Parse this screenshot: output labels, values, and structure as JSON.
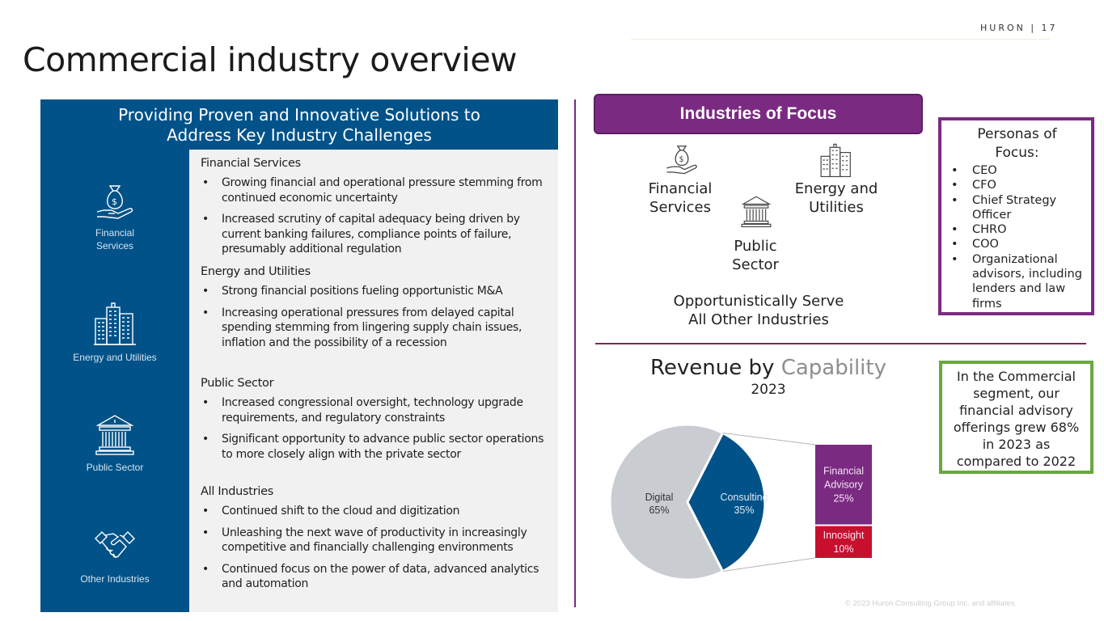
{
  "header": {
    "brand": "HURON  |  17",
    "title": "Commercial industry overview"
  },
  "left_panel": {
    "heading_line1": "Providing Proven and Innovative Solutions to",
    "heading_line2": "Address Key Industry Challenges",
    "side_items": [
      {
        "label_line1": "Financial",
        "label_line2": "Services",
        "icon": "money-bag-hand-icon"
      },
      {
        "label_line1": "Energy and  Utilities",
        "label_line2": "",
        "icon": "building-icon"
      },
      {
        "label_line1": "Public  Sector",
        "label_line2": "",
        "icon": "government-building-icon"
      },
      {
        "label_line1": "Other Industries",
        "label_line2": "",
        "icon": "handshake-icon"
      }
    ],
    "sections": [
      {
        "title": "Financial Services",
        "bullets": [
          "Growing financial and operational pressure stemming from continued economic uncertainty",
          "Increased scrutiny of capital adequacy being driven by current banking failures, compliance points of failure, presumably additional regulation"
        ]
      },
      {
        "title": "Energy and Utilities",
        "bullets": [
          "Strong financial positions fueling opportunistic M&A",
          "Increasing operational pressures from delayed capital spending stemming from lingering supply chain issues, inflation and the possibility of a recession"
        ]
      },
      {
        "title": "Public Sector",
        "bullets": [
          "Increased congressional oversight, technology upgrade requirements, and regulatory constraints",
          "Significant opportunity to advance public sector operations to more closely align with the private sector"
        ]
      },
      {
        "title": "All Industries",
        "bullets": [
          "Continued shift to the cloud and digitization",
          "Unleashing the next wave of productivity in increasingly competitive and financially challenging environments",
          "Continued focus on the power of data, advanced analytics and automation"
        ]
      }
    ]
  },
  "industries": {
    "banner": "Industries of Focus",
    "financial": [
      "Financial",
      "Services"
    ],
    "energy": [
      "Energy and",
      "Utilities"
    ],
    "public": [
      "Public",
      "Sector"
    ],
    "other": [
      "Opportunistically Serve",
      "All Other Industries"
    ]
  },
  "personas": {
    "title_line1": "Personas of",
    "title_line2": "Focus:",
    "items": [
      "CEO",
      "CFO",
      "Chief Strategy Officer",
      "CHRO",
      "COO",
      "Organizational advisors, including lenders and law firms"
    ]
  },
  "callout": {
    "lines": [
      "In the Commercial",
      "segment, our",
      "financial advisory",
      "offerings grew 68%",
      "in 2023 as",
      "compared to 2022"
    ]
  },
  "copyright": "© 2023 Huron Consulting Group Inc. and affiliates.",
  "colors": {
    "navy": "#005289",
    "purple": "#7b2a82",
    "gray": "#c9cdd2",
    "crimson": "#c8102e",
    "green": "#6aa83f"
  },
  "chart_data": {
    "type": "pie",
    "title_part1": "Revenue by",
    "title_part2": "Capability",
    "subtitle": "2023",
    "slices": [
      {
        "name": "Digital",
        "value": 65,
        "label": "65%",
        "color": "#c9cdd2"
      },
      {
        "name": "Consulting",
        "value": 35,
        "label": "35%",
        "color": "#005289"
      }
    ],
    "breakdown_of": "Consulting",
    "breakdown": [
      {
        "name_line1": "Financial",
        "name_line2": "Advisory",
        "value": 25,
        "label": "25%",
        "color": "#7b2a82"
      },
      {
        "name_line1": "Innosight",
        "name_line2": "",
        "value": 10,
        "label": "10%",
        "color": "#c8102e"
      }
    ]
  }
}
